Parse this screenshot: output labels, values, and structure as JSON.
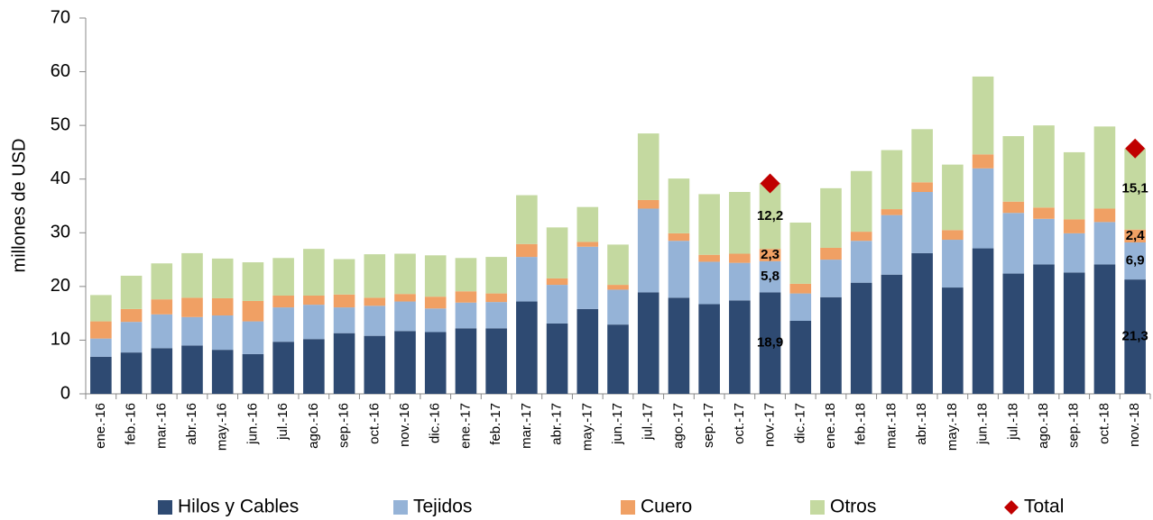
{
  "chart_data": {
    "type": "bar",
    "stacked": true,
    "y_label": "millones de  USD",
    "categories": [
      "ene.-16",
      "feb.-16",
      "mar.-16",
      "abr.-16",
      "may.-16",
      "jun.-16",
      "jul.-16",
      "ago.-16",
      "sep.-16",
      "oct.-16",
      "nov.-16",
      "dic.-16",
      "ene.-17",
      "feb.-17",
      "mar.-17",
      "abr.-17",
      "may.-17",
      "jun.-17",
      "jul.-17",
      "ago.-17",
      "sep.-17",
      "oct.-17",
      "nov.-17",
      "dic.-17",
      "ene.-18",
      "feb.-18",
      "mar.-18",
      "abr.-18",
      "may.-18",
      "jun.-18",
      "jul.-18",
      "ago.-18",
      "sep.-18",
      "oct.-18",
      "nov.-18"
    ],
    "series": [
      {
        "name": "Hilos y Cables",
        "color": "#2e4a72",
        "values": [
          6.9,
          7.7,
          8.5,
          9.0,
          8.2,
          7.4,
          9.7,
          10.2,
          11.3,
          10.8,
          11.7,
          11.5,
          12.2,
          12.2,
          17.2,
          13.1,
          15.8,
          12.9,
          18.9,
          17.9,
          16.7,
          17.4,
          18.9,
          13.6,
          18.0,
          20.7,
          22.2,
          26.2,
          19.8,
          27.1,
          22.4,
          24.1,
          22.6,
          24.1,
          21.3
        ],
        "value_labels": [
          null,
          null,
          null,
          null,
          null,
          null,
          null,
          null,
          null,
          null,
          null,
          null,
          null,
          null,
          null,
          null,
          null,
          null,
          null,
          null,
          null,
          null,
          "18,9",
          null,
          null,
          null,
          null,
          null,
          null,
          null,
          null,
          null,
          null,
          null,
          "21,3"
        ]
      },
      {
        "name": "Tejidos",
        "color": "#95b3d7",
        "values": [
          3.4,
          5.7,
          6.3,
          5.3,
          6.4,
          6.1,
          6.4,
          6.4,
          4.8,
          5.6,
          5.5,
          4.4,
          4.8,
          4.9,
          8.3,
          7.2,
          11.6,
          6.5,
          15.6,
          10.6,
          7.9,
          7.0,
          5.8,
          5.1,
          7.0,
          7.8,
          11.1,
          11.4,
          8.9,
          14.9,
          11.3,
          8.5,
          7.3,
          7.9,
          6.9
        ],
        "value_labels": [
          null,
          null,
          null,
          null,
          null,
          null,
          null,
          null,
          null,
          null,
          null,
          null,
          null,
          null,
          null,
          null,
          null,
          null,
          null,
          null,
          null,
          null,
          "5,8",
          null,
          null,
          null,
          null,
          null,
          null,
          null,
          null,
          null,
          null,
          null,
          "6,9"
        ]
      },
      {
        "name": "Cuero",
        "color": "#f0a064",
        "values": [
          3.2,
          2.4,
          2.8,
          3.6,
          3.2,
          3.8,
          2.2,
          1.7,
          2.4,
          1.5,
          1.4,
          2.2,
          2.1,
          1.6,
          2.4,
          1.2,
          0.9,
          0.9,
          1.6,
          1.4,
          1.3,
          1.7,
          2.3,
          1.8,
          2.2,
          1.7,
          1.1,
          1.8,
          1.8,
          2.6,
          2.1,
          2.1,
          2.6,
          2.5,
          2.4
        ],
        "value_labels": [
          null,
          null,
          null,
          null,
          null,
          null,
          null,
          null,
          null,
          null,
          null,
          null,
          null,
          null,
          null,
          null,
          null,
          null,
          null,
          null,
          null,
          null,
          "2,3",
          null,
          null,
          null,
          null,
          null,
          null,
          null,
          null,
          null,
          null,
          null,
          "2,4"
        ]
      },
      {
        "name": "Otros",
        "color": "#c4d9a0",
        "values": [
          4.9,
          6.2,
          6.7,
          8.3,
          7.4,
          7.2,
          7.0,
          8.7,
          6.6,
          8.1,
          7.5,
          7.7,
          6.2,
          6.8,
          9.1,
          9.5,
          6.5,
          7.5,
          12.4,
          10.2,
          11.3,
          11.5,
          12.2,
          11.4,
          11.1,
          11.3,
          11.0,
          9.9,
          12.2,
          14.5,
          12.2,
          15.3,
          12.5,
          15.3,
          15.1
        ],
        "value_labels": [
          null,
          null,
          null,
          null,
          null,
          null,
          null,
          null,
          null,
          null,
          null,
          null,
          null,
          null,
          null,
          null,
          null,
          null,
          null,
          null,
          null,
          null,
          "12,2",
          null,
          null,
          null,
          null,
          null,
          null,
          null,
          null,
          null,
          null,
          null,
          "15,1"
        ]
      },
      {
        "name": "Total",
        "type": "scatter",
        "color": "#c00000",
        "values": [
          null,
          null,
          null,
          null,
          null,
          null,
          null,
          null,
          null,
          null,
          null,
          null,
          null,
          null,
          null,
          null,
          null,
          null,
          null,
          null,
          null,
          null,
          39.2,
          null,
          null,
          null,
          null,
          null,
          null,
          null,
          null,
          null,
          null,
          null,
          45.7
        ]
      }
    ],
    "ylim": [
      0,
      70
    ],
    "yticks": [
      0,
      10,
      20,
      30,
      40,
      50,
      60,
      70
    ],
    "legend": "bottom"
  }
}
